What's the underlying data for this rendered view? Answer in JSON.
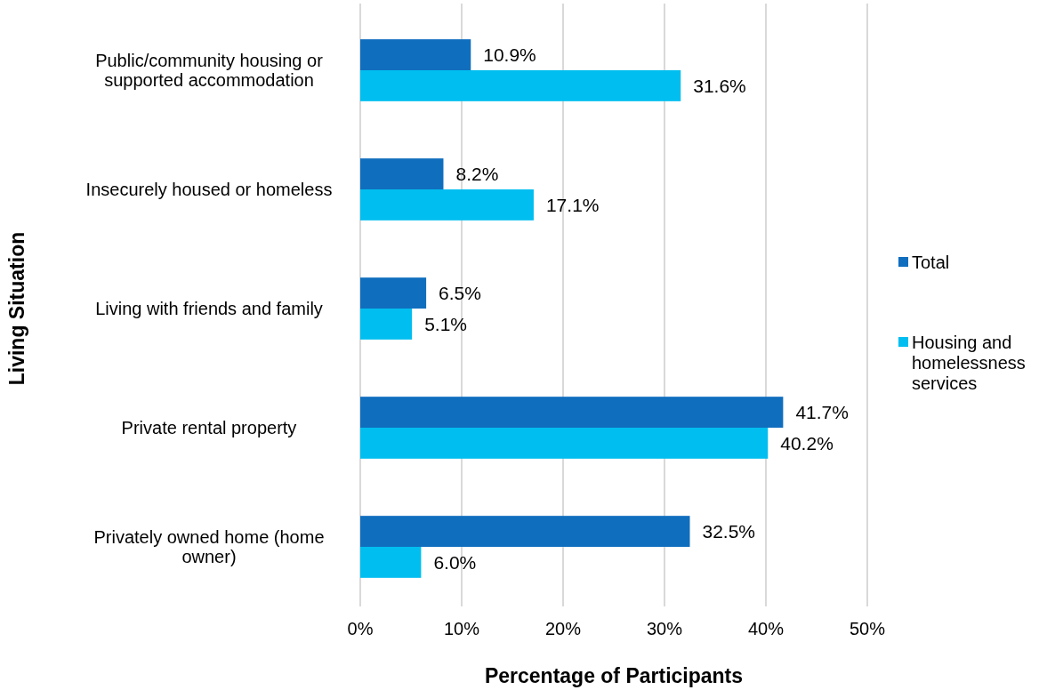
{
  "chart_data": {
    "type": "bar",
    "orientation": "horizontal",
    "xlabel": "Percentage of Participants",
    "ylabel": "Living Situation",
    "categories": [
      "Public/community housing or supported accommodation",
      "Insecurely housed or homeless",
      "Living with friends and family",
      "Private rental property",
      "Privately owned home (home owner)"
    ],
    "series": [
      {
        "name": "Total",
        "color": "#106ebe",
        "values": [
          10.9,
          8.2,
          6.5,
          41.7,
          32.5
        ],
        "value_labels": [
          "10.9%",
          "8.2%",
          "6.5%",
          "41.7%",
          "32.5%"
        ]
      },
      {
        "name": "Housing and homelessness services",
        "color": "#00bef0",
        "values": [
          31.6,
          17.1,
          5.1,
          40.2,
          6.0
        ],
        "value_labels": [
          "31.6%",
          "17.1%",
          "5.1%",
          "40.2%",
          "6.0%"
        ]
      }
    ],
    "xlim": [
      0,
      50
    ],
    "xticks": [
      {
        "value": 0,
        "label": "0%"
      },
      {
        "value": 10,
        "label": "10%"
      },
      {
        "value": 20,
        "label": "20%"
      },
      {
        "value": 30,
        "label": "30%"
      },
      {
        "value": 40,
        "label": "40%"
      },
      {
        "value": 50,
        "label": "50%"
      }
    ],
    "grid": "x",
    "legend": "right"
  }
}
